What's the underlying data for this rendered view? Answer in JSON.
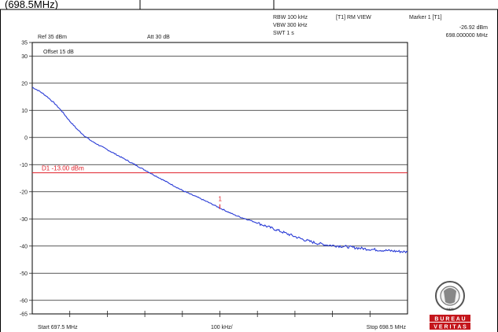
{
  "header": {
    "caption": "(698.5MHz)"
  },
  "settings": {
    "ref_level": "Ref 35 dBm",
    "attenuation": "Att  30 dB",
    "rbw": "RBW 100 kHz",
    "vbw": "VBW 300 kHz",
    "swt": "SWT 1 s",
    "trace_mode": "[T1] RM VIEW",
    "offset": "Offset 15 dB"
  },
  "marker": {
    "title": "Marker 1 [T1]",
    "level": "-26.92 dBm",
    "frequency": "698.000000 MHz",
    "label": "1"
  },
  "limit_line": {
    "label": "D1 -13.00 dBm",
    "value": -13,
    "color": "#e0202a"
  },
  "footer": {
    "start": "Start 697.5 MHz",
    "division": "100 kHz/",
    "stop": "Stop 698.5 MHz"
  },
  "logo": {
    "line1": "B U R E A U",
    "line2": "V E R I T A S",
    "year": "1828"
  },
  "chart_data": {
    "type": "line",
    "title": "",
    "xlabel": "",
    "ylabel": "",
    "xlim": [
      697.5,
      698.5
    ],
    "ylim": [
      -65,
      35
    ],
    "yticks": [
      35,
      30,
      20,
      10,
      0,
      -10,
      -20,
      -30,
      -40,
      -50,
      -60,
      -65
    ],
    "grid": true,
    "trace_color": "#2a3cd6",
    "series": [
      {
        "name": "",
        "x": [
          697.5,
          697.52,
          697.54,
          697.56,
          697.58,
          697.6,
          697.62,
          697.64,
          697.66,
          697.68,
          697.7,
          697.72,
          697.74,
          697.76,
          697.78,
          697.8,
          697.82,
          697.84,
          697.86,
          697.88,
          697.9,
          697.92,
          697.94,
          697.96,
          697.98,
          698.0,
          698.02,
          698.04,
          698.06,
          698.08,
          698.1,
          698.12,
          698.14,
          698.16,
          698.18,
          698.2,
          698.22,
          698.24,
          698.26,
          698.28,
          698.3,
          698.32,
          698.34,
          698.36,
          698.38,
          698.4,
          698.42,
          698.44,
          698.46,
          698.48,
          698.5
        ],
        "y": [
          18.5,
          17.0,
          15.0,
          12.5,
          9.5,
          6.0,
          3.0,
          0.5,
          -1.5,
          -3.0,
          -4.5,
          -6.0,
          -7.5,
          -9.0,
          -10.5,
          -12.0,
          -13.5,
          -15.0,
          -16.5,
          -18.0,
          -19.5,
          -20.8,
          -22.0,
          -23.3,
          -24.6,
          -26.0,
          -27.3,
          -28.6,
          -29.6,
          -30.5,
          -31.5,
          -32.5,
          -33.5,
          -34.5,
          -35.5,
          -36.5,
          -37.5,
          -38.3,
          -39.0,
          -39.5,
          -39.8,
          -40.0,
          -40.3,
          -40.6,
          -40.9,
          -41.2,
          -41.4,
          -41.6,
          -41.8,
          -42.0,
          -42.2
        ]
      }
    ]
  }
}
